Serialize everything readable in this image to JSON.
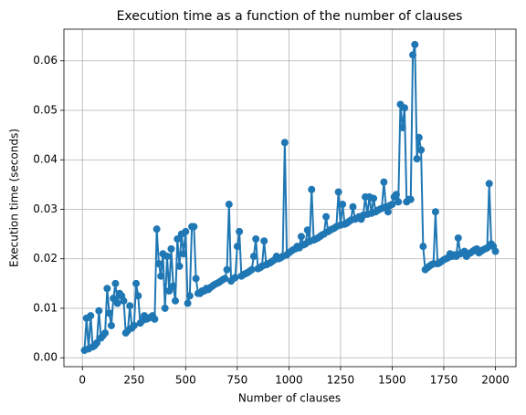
{
  "chart_data": {
    "type": "line",
    "title": "Execution time as a function of the number of clauses",
    "xlabel": "Number of clauses",
    "ylabel": "Execution time (seconds)",
    "grid": true,
    "xlim": [
      -89.5,
      2099.5
    ],
    "ylim": [
      -0.0018,
      0.0664
    ],
    "xticks": [
      0,
      250,
      500,
      750,
      1000,
      1250,
      1500,
      1750,
      2000
    ],
    "yticks": [
      {
        "value": 0,
        "label": "0.00"
      },
      {
        "value": 0.01,
        "label": "0.01"
      },
      {
        "value": 0.02,
        "label": "0.02"
      },
      {
        "value": 0.03,
        "label": "0.03"
      },
      {
        "value": 0.04,
        "label": "0.04"
      },
      {
        "value": 0.05,
        "label": "0.05"
      },
      {
        "value": 0.06,
        "label": "0.06"
      }
    ],
    "x": [
      10,
      20,
      30,
      40,
      50,
      60,
      70,
      80,
      90,
      100,
      110,
      120,
      130,
      140,
      150,
      160,
      170,
      180,
      190,
      200,
      210,
      220,
      230,
      240,
      250,
      260,
      270,
      280,
      290,
      300,
      310,
      320,
      330,
      340,
      350,
      360,
      370,
      380,
      390,
      400,
      410,
      420,
      430,
      440,
      450,
      460,
      470,
      480,
      490,
      500,
      510,
      520,
      530,
      540,
      550,
      560,
      570,
      580,
      590,
      600,
      610,
      620,
      630,
      640,
      650,
      660,
      670,
      680,
      690,
      700,
      710,
      720,
      730,
      740,
      750,
      760,
      770,
      780,
      790,
      800,
      810,
      820,
      830,
      840,
      850,
      860,
      870,
      880,
      890,
      900,
      910,
      920,
      930,
      940,
      950,
      960,
      970,
      980,
      990,
      1000,
      1010,
      1020,
      1030,
      1040,
      1050,
      1060,
      1070,
      1080,
      1090,
      1100,
      1110,
      1120,
      1130,
      1140,
      1150,
      1160,
      1170,
      1180,
      1190,
      1200,
      1210,
      1220,
      1230,
      1240,
      1250,
      1260,
      1270,
      1280,
      1290,
      1300,
      1310,
      1320,
      1330,
      1340,
      1350,
      1360,
      1370,
      1380,
      1390,
      1400,
      1410,
      1420,
      1430,
      1440,
      1450,
      1460,
      1470,
      1480,
      1490,
      1500,
      1510,
      1520,
      1530,
      1540,
      1550,
      1560,
      1570,
      1580,
      1590,
      1600,
      1610,
      1620,
      1630,
      1640,
      1650,
      1660,
      1670,
      1680,
      1690,
      1700,
      1710,
      1720,
      1730,
      1740,
      1750,
      1760,
      1770,
      1780,
      1790,
      1800,
      1810,
      1820,
      1830,
      1840,
      1850,
      1860,
      1870,
      1880,
      1890,
      1900,
      1910,
      1920,
      1930,
      1940,
      1950,
      1960,
      1970,
      1980,
      1990,
      2000
    ],
    "series": [
      {
        "color": "#1f77b4",
        "values": [
          0.0015,
          0.008,
          0.0018,
          0.0085,
          0.0022,
          0.0025,
          0.003,
          0.0095,
          0.004,
          0.0045,
          0.005,
          0.014,
          0.009,
          0.0065,
          0.012,
          0.015,
          0.011,
          0.013,
          0.0125,
          0.0115,
          0.005,
          0.0055,
          0.0105,
          0.006,
          0.0065,
          0.015,
          0.0125,
          0.007,
          0.0075,
          0.0085,
          0.0078,
          0.008,
          0.0082,
          0.0085,
          0.0078,
          0.026,
          0.019,
          0.0165,
          0.021,
          0.01,
          0.0205,
          0.0135,
          0.022,
          0.0145,
          0.0115,
          0.024,
          0.0185,
          0.025,
          0.021,
          0.0255,
          0.011,
          0.0125,
          0.0265,
          0.0265,
          0.016,
          0.013,
          0.013,
          0.0135,
          0.0135,
          0.014,
          0.0138,
          0.0142,
          0.0145,
          0.0148,
          0.015,
          0.0152,
          0.0155,
          0.0158,
          0.016,
          0.0178,
          0.031,
          0.0155,
          0.016,
          0.0162,
          0.0225,
          0.0255,
          0.0165,
          0.0168,
          0.017,
          0.0172,
          0.0175,
          0.0178,
          0.0205,
          0.024,
          0.018,
          0.0182,
          0.0185,
          0.0236,
          0.0188,
          0.019,
          0.0192,
          0.0195,
          0.0198,
          0.0205,
          0.02,
          0.0202,
          0.0205,
          0.0435,
          0.0208,
          0.0212,
          0.0215,
          0.0218,
          0.022,
          0.0225,
          0.0222,
          0.0245,
          0.0228,
          0.023,
          0.0258,
          0.0235,
          0.034,
          0.0238,
          0.024,
          0.0242,
          0.0245,
          0.0248,
          0.025,
          0.0285,
          0.0255,
          0.0258,
          0.026,
          0.0262,
          0.0265,
          0.0335,
          0.0268,
          0.031,
          0.027,
          0.0272,
          0.0275,
          0.0278,
          0.0305,
          0.028,
          0.0282,
          0.0285,
          0.028,
          0.0288,
          0.0325,
          0.029,
          0.0325,
          0.0292,
          0.0322,
          0.0295,
          0.0298,
          0.03,
          0.0302,
          0.0355,
          0.0305,
          0.0295,
          0.0308,
          0.031,
          0.0325,
          0.033,
          0.0315,
          0.0512,
          0.0465,
          0.0505,
          0.0315,
          0.032,
          0.032,
          0.0612,
          0.0633,
          0.0402,
          0.0445,
          0.042,
          0.0225,
          0.0178,
          0.0182,
          0.0185,
          0.0188,
          0.019,
          0.0295,
          0.019,
          0.0192,
          0.0195,
          0.0198,
          0.02,
          0.0202,
          0.021,
          0.0205,
          0.0208,
          0.0205,
          0.0242,
          0.021,
          0.0212,
          0.0215,
          0.0205,
          0.021,
          0.0212,
          0.0215,
          0.0218,
          0.022,
          0.0212,
          0.0215,
          0.0218,
          0.022,
          0.0222,
          0.0352,
          0.023,
          0.0225,
          0.0215
        ]
      }
    ]
  }
}
